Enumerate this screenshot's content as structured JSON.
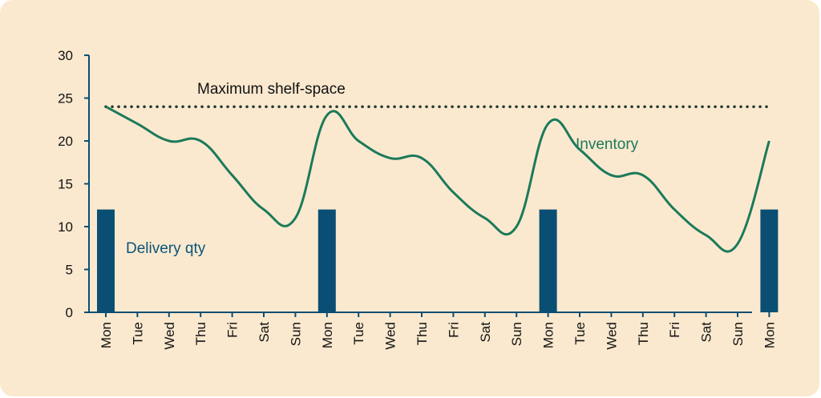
{
  "chart_data": {
    "type": "line",
    "categories": [
      "Mon",
      "Tue",
      "Wed",
      "Thu",
      "Fri",
      "Sat",
      "Sun",
      "Mon",
      "Tue",
      "Wed",
      "Thu",
      "Fri",
      "Sat",
      "Sun",
      "Mon",
      "Tue",
      "Wed",
      "Thu",
      "Fri",
      "Sat",
      "Sun",
      "Mon"
    ],
    "ylim": [
      0,
      30
    ],
    "yticks": [
      0,
      5,
      10,
      15,
      20,
      25,
      30
    ],
    "grid": false,
    "series": [
      {
        "name": "Inventory",
        "type": "line",
        "color": "#1b7a5a",
        "values": [
          24,
          22,
          20,
          20,
          16,
          12,
          11,
          23,
          20,
          18,
          18,
          14,
          11,
          10,
          22,
          19,
          16,
          16,
          12,
          9,
          8,
          20
        ]
      },
      {
        "name": "Delivery qty",
        "type": "bar",
        "color": "#0a4f73",
        "values": [
          12,
          0,
          0,
          0,
          0,
          0,
          0,
          12,
          0,
          0,
          0,
          0,
          0,
          0,
          12,
          0,
          0,
          0,
          0,
          0,
          0,
          12
        ]
      }
    ],
    "reference_line": {
      "label": "Maximum shelf-space",
      "value": 24,
      "style": "dotted",
      "color": "#1b7a5a"
    },
    "annotations": {
      "inventory_label": "Inventory",
      "delivery_label": "Delivery qty"
    },
    "background_color": "#fbe9cf",
    "axis_color": "#0a4f73"
  }
}
